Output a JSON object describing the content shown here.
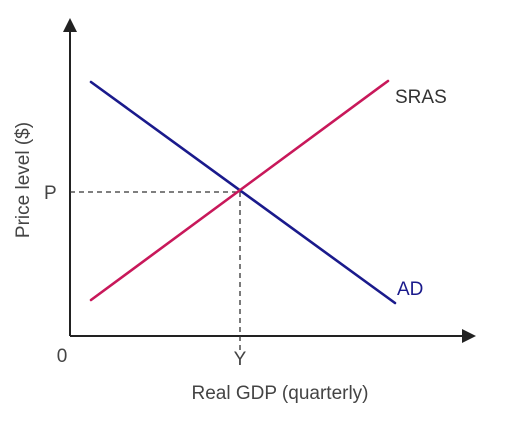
{
  "diagram": {
    "axes": {
      "x_label": "Real GDP (quarterly)",
      "y_label": "Price level ($)",
      "origin_label": "0"
    },
    "equilibrium": {
      "price_label": "P",
      "output_label": "Y"
    },
    "curves": {
      "sras": {
        "label": "SRAS",
        "color": "#c8185a",
        "slope": "upward"
      },
      "ad": {
        "label": "AD",
        "color": "#1a1a8c",
        "slope": "downward"
      }
    },
    "colors": {
      "axis": "#222222",
      "guide": "#333333",
      "text": "#444444"
    }
  }
}
